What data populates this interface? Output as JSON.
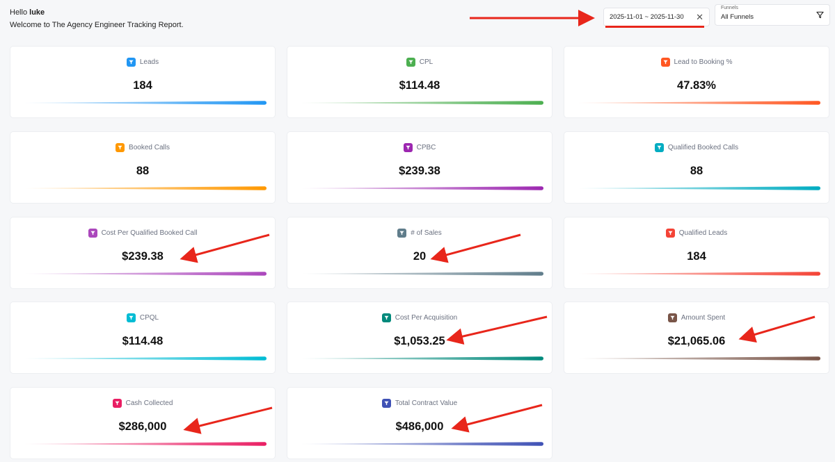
{
  "header": {
    "greeting": "Hello",
    "user": "luke",
    "welcome": "Welcome to The Agency Engineer Tracking Report."
  },
  "date_range": {
    "value": "2025-11-01 ~ 2025-11-30",
    "clear_icon": "close-icon"
  },
  "funnels": {
    "caption": "Funnels",
    "value": "All Funnels",
    "icon": "filter-icon"
  },
  "annotation_color": "#e8261b",
  "cards": [
    {
      "label": "Leads",
      "value": "184",
      "color": "#2196f3"
    },
    {
      "label": "CPL",
      "value": "$114.48",
      "color": "#4caf50"
    },
    {
      "label": "Lead to Booking %",
      "value": "47.83%",
      "color": "#ff5722"
    },
    {
      "label": "Booked Calls",
      "value": "88",
      "color": "#ff9800"
    },
    {
      "label": "CPBC",
      "value": "$239.38",
      "color": "#9c27b0"
    },
    {
      "label": "Qualified Booked Calls",
      "value": "88",
      "color": "#00acc1"
    },
    {
      "label": "Cost Per Qualified Booked Call",
      "value": "$239.38",
      "color": "#ab47bc"
    },
    {
      "label": "# of Sales",
      "value": "20",
      "color": "#607d8b"
    },
    {
      "label": "Qualified Leads",
      "value": "184",
      "color": "#f44336"
    },
    {
      "label": "CPQL",
      "value": "$114.48",
      "color": "#00bcd4"
    },
    {
      "label": "Cost Per Acquisition",
      "value": "$1,053.25",
      "color": "#00897b"
    },
    {
      "label": "Amount Spent",
      "value": "$21,065.06",
      "color": "#795548"
    },
    {
      "label": "Cash Collected",
      "value": "$286,000",
      "color": "#e91e63"
    },
    {
      "label": "Total Contract Value",
      "value": "$486,000",
      "color": "#3f51b5"
    }
  ]
}
